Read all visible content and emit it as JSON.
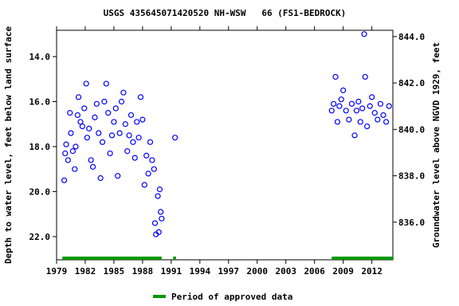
{
  "chart_data": {
    "type": "scatter",
    "title": "USGS 435645071420520 NH-WSW   66 (FS1-BEDROCK)",
    "y_label": "Depth to water level, feet below land surface",
    "y2_label": "Groundwater level above NGVD 1929, feet",
    "xlim": [
      1979,
      2014.2
    ],
    "xticks": [
      1979,
      1982,
      1985,
      1988,
      1991,
      1994,
      1997,
      2000,
      2003,
      2006,
      2009,
      2012
    ],
    "ylim": [
      23.03,
      12.83
    ],
    "yticks": [
      {
        "value": 14,
        "label": "14.0"
      },
      {
        "value": 16,
        "label": "16.0"
      },
      {
        "value": 18,
        "label": "18.0"
      },
      {
        "value": 20,
        "label": "20.0"
      },
      {
        "value": 22,
        "label": "22.0"
      }
    ],
    "y2lim": [
      834.38,
      844.27
    ],
    "y2ticks": [
      {
        "value": 836,
        "label": "836.0"
      },
      {
        "value": 838,
        "label": "838.0"
      },
      {
        "value": 840,
        "label": "840.0"
      },
      {
        "value": 842,
        "label": "842.0"
      },
      {
        "value": 844,
        "label": "844.0"
      }
    ],
    "series": [
      {
        "color": "#0000ff",
        "x": [
          1979.8,
          1979.9,
          1980.0,
          1980.2,
          1980.4,
          1980.5,
          1980.7,
          1980.9,
          1981.0,
          1981.2,
          1981.3,
          1981.5,
          1981.7,
          1981.9,
          1982.1,
          1982.2,
          1982.4,
          1982.6,
          1982.8,
          1983.0,
          1983.2,
          1983.4,
          1983.6,
          1983.8,
          1984.0,
          1984.2,
          1984.4,
          1984.6,
          1984.8,
          1985.0,
          1985.2,
          1985.4,
          1985.6,
          1985.8,
          1986.0,
          1986.2,
          1986.4,
          1986.6,
          1986.8,
          1987.0,
          1987.2,
          1987.4,
          1987.6,
          1987.8,
          1988.0,
          1988.2,
          1988.4,
          1988.6,
          1988.8,
          1989.0,
          1989.2,
          1989.3,
          1989.4,
          1989.6,
          1989.7,
          1989.8,
          1989.9,
          1990.0,
          1991.4,
          2007.8,
          2008.0,
          2008.2,
          2008.4,
          2008.6,
          2008.8,
          2009.0,
          2009.3,
          2009.6,
          2009.9,
          2010.2,
          2010.4,
          2010.6,
          2010.8,
          2011.0,
          2011.2,
          2011.3,
          2011.5,
          2011.8,
          2012.0,
          2012.3,
          2012.6,
          2012.9,
          2013.2,
          2013.5,
          2013.8
        ],
        "values": [
          19.5,
          18.3,
          17.9,
          18.6,
          16.5,
          17.4,
          18.2,
          19.0,
          18.0,
          16.6,
          15.8,
          16.9,
          17.1,
          16.3,
          15.2,
          17.6,
          17.2,
          18.6,
          18.9,
          16.7,
          16.1,
          17.4,
          19.4,
          17.8,
          16.0,
          15.2,
          16.5,
          18.3,
          17.5,
          16.9,
          16.3,
          19.3,
          17.4,
          16.0,
          15.6,
          17.0,
          18.2,
          17.5,
          16.6,
          17.8,
          18.5,
          16.9,
          17.6,
          15.8,
          16.8,
          19.7,
          18.4,
          19.2,
          17.8,
          18.6,
          19.0,
          21.4,
          21.9,
          20.2,
          21.8,
          19.9,
          20.9,
          21.2,
          17.6,
          16.4,
          16.1,
          14.9,
          16.9,
          16.2,
          15.9,
          15.5,
          16.4,
          16.8,
          16.1,
          17.5,
          16.4,
          16.0,
          16.9,
          16.3,
          13.0,
          14.9,
          17.1,
          16.2,
          15.8,
          16.5,
          16.8,
          16.1,
          16.6,
          16.9,
          16.2
        ]
      }
    ],
    "approved": {
      "name": "Period of approved data",
      "color": "#009900",
      "periods": [
        [
          1979.6,
          1990.0
        ],
        [
          1991.2,
          1991.5
        ],
        [
          2007.8,
          2014.2
        ]
      ]
    }
  }
}
